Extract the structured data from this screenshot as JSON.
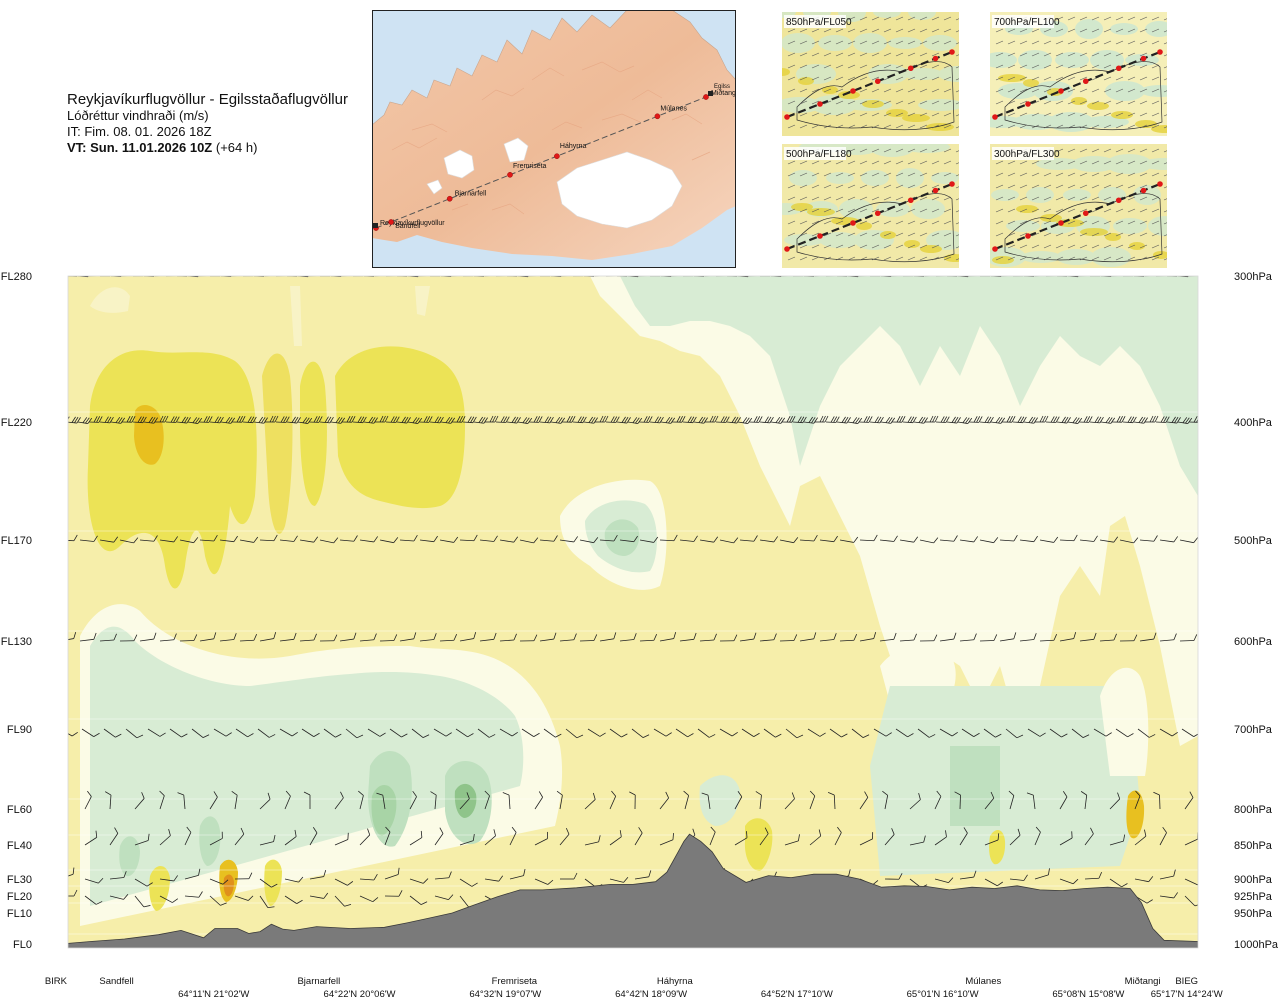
{
  "header": {
    "route": "Reykjavíkurflugvöllur - Egilsstaðaflugvöllur",
    "variable": "Lóðréttur vindhraði (m/s)",
    "issue_time": "IT: Fim. 08. 01. 2026 18Z",
    "valid_time_bold": "VT: Sun. 11.01.2026 10Z",
    "valid_time_offset": " (+64 h)"
  },
  "route_map": {
    "waypoints": [
      "Reykjavíkurflugvöllur",
      "Sandfell",
      "Bjarnarfell",
      "Fremriseta",
      "Háhyrna",
      "Múlanes",
      "Miðtangi",
      "Egilsstaðaflugvöllur"
    ],
    "label_egils": "Egilss",
    "label_midtangi": "Miðtangi"
  },
  "inset_maps": [
    {
      "label": "850hPa/FL050"
    },
    {
      "label": "700hPa/FL100"
    },
    {
      "label": "500hPa/FL180"
    },
    {
      "label": "300hPa/FL300"
    }
  ],
  "chart_data": {
    "type": "heatmap",
    "description_values": "vertical cross-section of vertical wind speed along the route",
    "y_left_ticks": [
      {
        "label": "FL280",
        "level": 300
      },
      {
        "label": "FL220",
        "level": 400
      },
      {
        "label": "FL170",
        "level": 500
      },
      {
        "label": "FL130",
        "level": 600
      },
      {
        "label": "FL90",
        "level": 700
      },
      {
        "label": "FL60",
        "level": 800
      },
      {
        "label": "FL40",
        "level": 850
      },
      {
        "label": "FL30",
        "level": 900
      },
      {
        "label": "FL20",
        "level": 925
      },
      {
        "label": "FL10",
        "level": 950
      },
      {
        "label": "FL0",
        "level": 1000
      }
    ],
    "y_right_ticks": [
      "300hPa",
      "400hPa",
      "500hPa",
      "600hPa",
      "700hPa",
      "800hPa",
      "850hPa",
      "900hPa",
      "925hPa",
      "950hPa",
      "1000hPa"
    ],
    "x_waypoints": [
      {
        "name": "BIRK",
        "frac": 0.0
      },
      {
        "name": "Sandfell",
        "frac": 0.043
      },
      {
        "name": "Bjarnarfell",
        "frac": 0.222
      },
      {
        "name": "Fremriseta",
        "frac": 0.395
      },
      {
        "name": "Háhyrna",
        "frac": 0.537
      },
      {
        "name": "Múlanes",
        "frac": 0.81
      },
      {
        "name": "Miðtangi",
        "frac": 0.951
      },
      {
        "name": "BIEG",
        "frac": 0.99
      }
    ],
    "x_coords": [
      {
        "label": "64°11'N 21°02'W",
        "frac": 0.129
      },
      {
        "label": "64°22'N 20°06'W",
        "frac": 0.258
      },
      {
        "label": "64°32'N 19°07'W",
        "frac": 0.387
      },
      {
        "label": "64°42'N 18°09'W",
        "frac": 0.516
      },
      {
        "label": "64°52'N 17°10'W",
        "frac": 0.645
      },
      {
        "label": "65°01'N 16°10'W",
        "frac": 0.774
      },
      {
        "label": "65°08'N 15°08'W",
        "frac": 0.903
      },
      {
        "label": "65°17'N 14°24'W",
        "frac": 0.99
      }
    ],
    "terrain_profile_hpa": [
      [
        0.0,
        999
      ],
      [
        0.02,
        996
      ],
      [
        0.05,
        992
      ],
      [
        0.08,
        985
      ],
      [
        0.1,
        978
      ],
      [
        0.12,
        990
      ],
      [
        0.13,
        975
      ],
      [
        0.15,
        975
      ],
      [
        0.16,
        983
      ],
      [
        0.17,
        980
      ],
      [
        0.18,
        968
      ],
      [
        0.19,
        976
      ],
      [
        0.2,
        978
      ],
      [
        0.22,
        972
      ],
      [
        0.25,
        975
      ],
      [
        0.28,
        973
      ],
      [
        0.3,
        966
      ],
      [
        0.32,
        958
      ],
      [
        0.34,
        950
      ],
      [
        0.36,
        938
      ],
      [
        0.38,
        926
      ],
      [
        0.4,
        916
      ],
      [
        0.42,
        916
      ],
      [
        0.45,
        913
      ],
      [
        0.48,
        908
      ],
      [
        0.5,
        908
      ],
      [
        0.52,
        904
      ],
      [
        0.53,
        890
      ],
      [
        0.54,
        860
      ],
      [
        0.545,
        845
      ],
      [
        0.55,
        835
      ],
      [
        0.56,
        845
      ],
      [
        0.57,
        860
      ],
      [
        0.58,
        885
      ],
      [
        0.6,
        905
      ],
      [
        0.62,
        895
      ],
      [
        0.64,
        898
      ],
      [
        0.66,
        893
      ],
      [
        0.68,
        893
      ],
      [
        0.7,
        900
      ],
      [
        0.72,
        912
      ],
      [
        0.74,
        910
      ],
      [
        0.76,
        911
      ],
      [
        0.78,
        916
      ],
      [
        0.8,
        912
      ],
      [
        0.82,
        914
      ],
      [
        0.84,
        910
      ],
      [
        0.86,
        916
      ],
      [
        0.88,
        917
      ],
      [
        0.9,
        914
      ],
      [
        0.92,
        912
      ],
      [
        0.94,
        914
      ],
      [
        0.95,
        935
      ],
      [
        0.96,
        975
      ],
      [
        0.97,
        994
      ],
      [
        1.0,
        996
      ]
    ],
    "legend": "none",
    "grid": true
  }
}
